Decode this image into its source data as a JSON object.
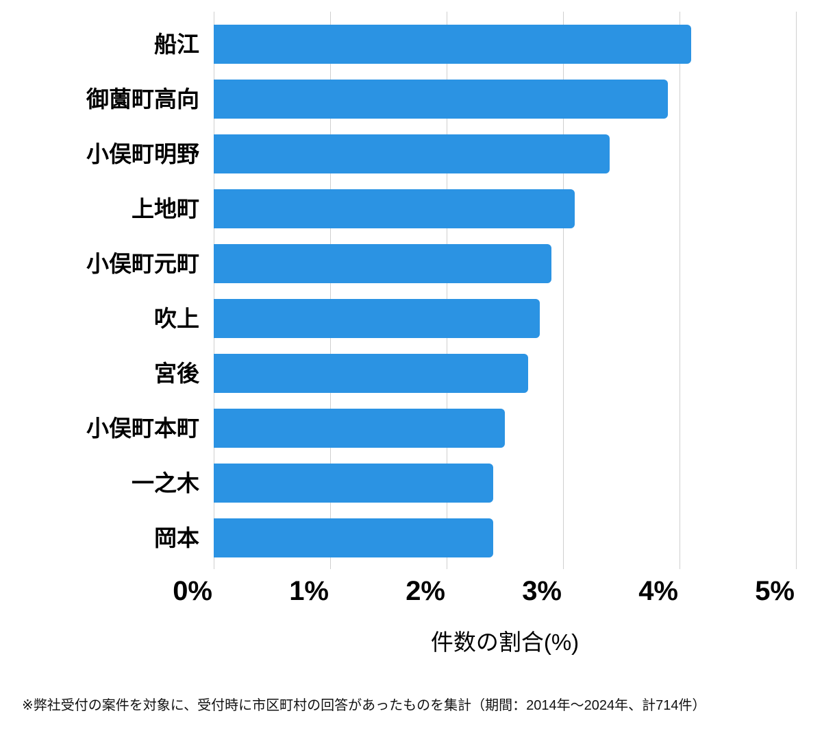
{
  "chart_data": {
    "type": "bar",
    "orientation": "horizontal",
    "title": "",
    "categories": [
      "船江",
      "御薗町高向",
      "小俣町明野",
      "上地町",
      "小俣町元町",
      "吹上",
      "宮後",
      "小俣町本町",
      "一之木",
      "岡本"
    ],
    "values": [
      4.1,
      3.9,
      3.4,
      3.1,
      2.9,
      2.8,
      2.7,
      2.5,
      2.4,
      2.4
    ],
    "xlabel": "件数の割合(%)",
    "ylabel": "",
    "xlim": [
      0,
      5
    ],
    "x_ticks": [
      0,
      1,
      2,
      3,
      4,
      5
    ],
    "x_tick_labels": [
      "0%",
      "1%",
      "2%",
      "3%",
      "4%",
      "5%"
    ],
    "grid": "vertical",
    "legend": "none",
    "bar_color": "#2b93e3",
    "grid_color": "#cfcfcf"
  },
  "footnote": "※弊社受付の案件を対象に、受付時に市区町村の回答があったものを集計（期間：2014年～2024年、計714件）"
}
